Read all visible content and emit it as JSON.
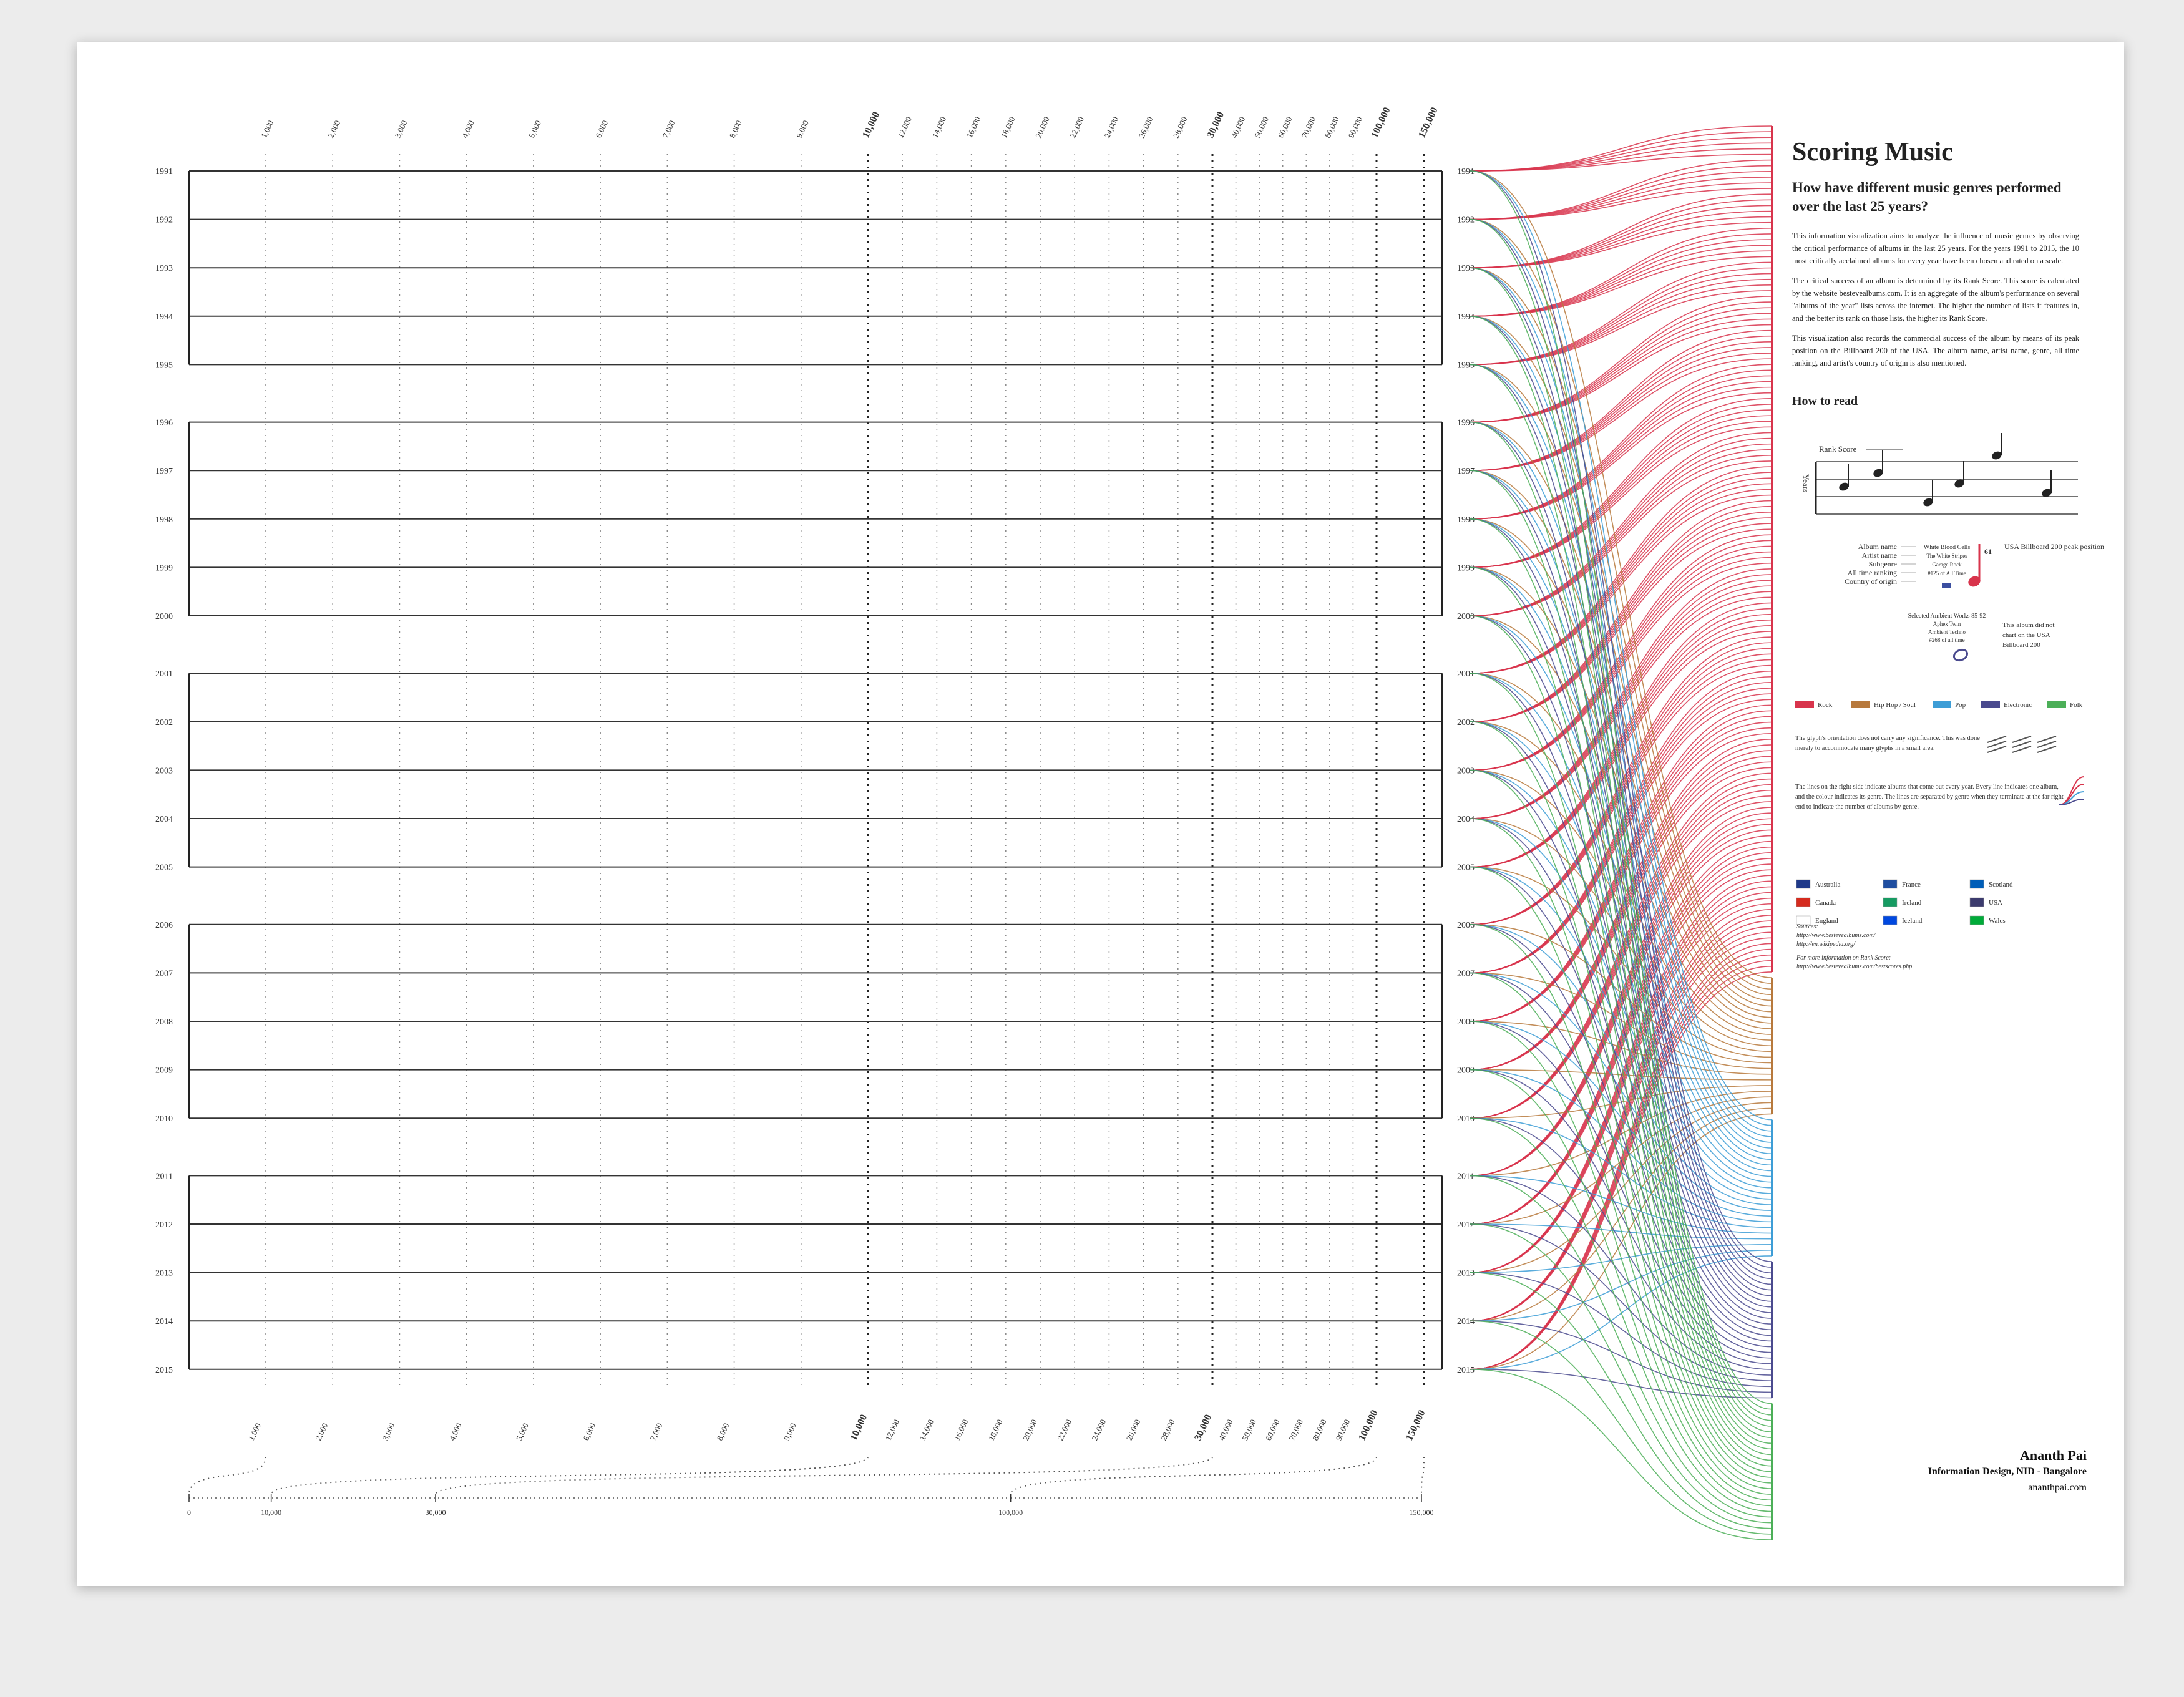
{
  "title": "Scoring Music",
  "subtitle": "How have different music genres performed over the last 25 years?",
  "paragraphs": [
    "This information visualization aims to analyze the influence of music genres by observing the critical performance of albums in the last 25 years. For the years 1991 to 2015, the 10 most critically acclaimed albums for every year have been chosen and rated on a scale.",
    "The critical success of an album is determined by its Rank Score. This score is calculated by the website bestevealbums.com. It is an aggregate of the album's performance on several \"albums of the year\" lists across the internet. The higher the number of lists it features in, and the better its rank on those lists, the higher its Rank Score.",
    "This visualization also records the commercial success of the album by means of its peak position on the Billboard 200 of the USA. The album name, artist name, genre, all time ranking, and artist's country of origin is also mentioned."
  ],
  "how_to_read": {
    "heading": "How to read",
    "rank_score_label": "Rank Score",
    "years_label": "Years",
    "fields": [
      "Album name",
      "Artist name",
      "Subgenre",
      "All time ranking",
      "Country of origin"
    ],
    "example": [
      "White Blood Cells",
      "The White Stripes",
      "Garage Rock",
      "#125 of All Time"
    ],
    "peak": "61",
    "peak_label": "USA Billboard 200 peak position",
    "example2": [
      "Selected Ambient Works 85-92",
      "Aphex Twin",
      "Ambient Techno",
      "#268 of all time"
    ],
    "no_chart_note": "This album did not chart on the USA Billboard 200"
  },
  "genres": [
    {
      "name": "Rock",
      "color": "#d8344c"
    },
    {
      "name": "Hip Hop / Soul",
      "color": "#b7793c"
    },
    {
      "name": "Pop",
      "color": "#3d9dd6"
    },
    {
      "name": "Electronic",
      "color": "#4a4a8e"
    },
    {
      "name": "Folk",
      "color": "#4caf58"
    }
  ],
  "glyph_note": "The glyph's orientation does not carry any significance. This was done merely to accommodate many glyphs in a small area.",
  "lines_note": "The lines on the right side indicate albums that come out every year. Every line indicates one album, and the colour indicates its genre. The lines are separated by genre when they terminate at the far right end to indicate the number of albums by genre.",
  "countries": [
    "Australia",
    "Canada",
    "England",
    "France",
    "Ireland",
    "Iceland",
    "Scotland",
    "USA",
    "Wales"
  ],
  "sources": [
    "Sources:",
    "http://www.bestevealbums.com/",
    "http://en.wikipedia.org/",
    "For more information on Rank Score:",
    "http://www.bestevealbums.com/bestscores.php"
  ],
  "credits": [
    "Ananth Pai",
    "Information Design, NID - Bangalore",
    "ananthpai.com"
  ],
  "chart_data": {
    "type": "staff",
    "categories": [
      "1991",
      "1992",
      "1993",
      "1994",
      "1995",
      "1996",
      "1997",
      "1998",
      "1999",
      "2000",
      "2001",
      "2002",
      "2003",
      "2004",
      "2005",
      "2006",
      "2007",
      "2008",
      "2009",
      "2010",
      "2011",
      "2012",
      "2013",
      "2014",
      "2015"
    ],
    "xticks": [
      {
        "value": 1000,
        "label": "1,000"
      },
      {
        "value": 2000,
        "label": "2,000"
      },
      {
        "value": 3000,
        "label": "3,000"
      },
      {
        "value": 4000,
        "label": "4,000"
      },
      {
        "value": 5000,
        "label": "5,000"
      },
      {
        "value": 6000,
        "label": "6,000"
      },
      {
        "value": 7000,
        "label": "7,000"
      },
      {
        "value": 8000,
        "label": "8,000"
      },
      {
        "value": 9000,
        "label": "9,000"
      },
      {
        "value": 10000,
        "label": "10,000"
      },
      {
        "value": 12000,
        "label": "12,000"
      },
      {
        "value": 14000,
        "label": "14,000"
      },
      {
        "value": 16000,
        "label": "16,000"
      },
      {
        "value": 18000,
        "label": "18,000"
      },
      {
        "value": 20000,
        "label": "20,000"
      },
      {
        "value": 22000,
        "label": "22,000"
      },
      {
        "value": 24000,
        "label": "24,000"
      },
      {
        "value": 26000,
        "label": "26,000"
      },
      {
        "value": 28000,
        "label": "28,000"
      },
      {
        "value": 30000,
        "label": "30,000"
      },
      {
        "value": 40000,
        "label": "40,000"
      },
      {
        "value": 50000,
        "label": "50,000"
      },
      {
        "value": 60000,
        "label": "60,000"
      },
      {
        "value": 70000,
        "label": "70,000"
      },
      {
        "value": 80000,
        "label": "80,000"
      },
      {
        "value": 90000,
        "label": "90,000"
      },
      {
        "value": 100000,
        "label": "100,000"
      },
      {
        "value": 150000,
        "label": "150,000"
      }
    ],
    "x2lim": [
      0,
      150000
    ],
    "x2ticks": [
      0,
      {
        "value": 10000,
        "label": "10,000"
      },
      {
        "value": 30000,
        "label": "30,000"
      },
      {
        "value": 100000,
        "label": "100,000"
      },
      {
        "value": 150000,
        "label": "150,000"
      }
    ]
  }
}
